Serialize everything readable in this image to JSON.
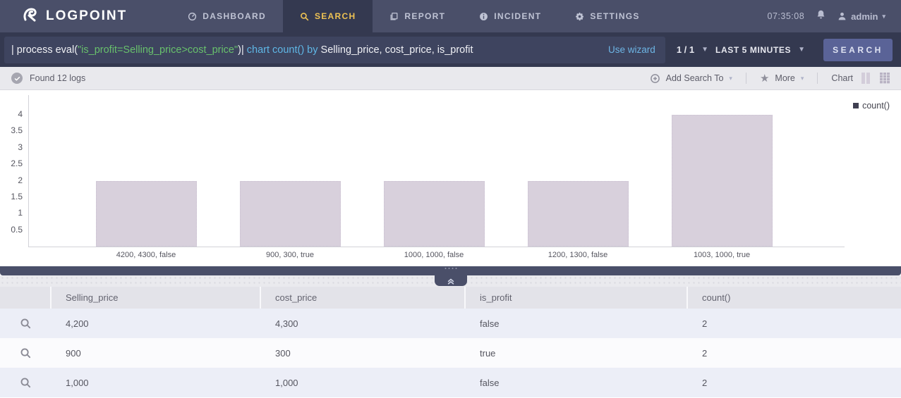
{
  "nav": {
    "logo": "LOGPOINT",
    "items": [
      {
        "label": "DASHBOARD",
        "icon": "dashboard-icon",
        "active": false
      },
      {
        "label": "SEARCH",
        "icon": "search-icon",
        "active": true
      },
      {
        "label": "REPORT",
        "icon": "report-icon",
        "active": false
      },
      {
        "label": "INCIDENT",
        "icon": "incident-icon",
        "active": false
      },
      {
        "label": "SETTINGS",
        "icon": "settings-icon",
        "active": false
      }
    ],
    "clock": "07:35:08",
    "user": "admin"
  },
  "query_bar": {
    "query_segments": [
      {
        "text": "| process eval(",
        "color": "white"
      },
      {
        "text": "\"is_profit=Selling_price>cost_price\"",
        "color": "green"
      },
      {
        "text": ")| ",
        "color": "white"
      },
      {
        "text": "chart count() by ",
        "color": "blue"
      },
      {
        "text": "Selling_price, cost_price, is_profit",
        "color": "white"
      }
    ],
    "use_wizard": "Use wizard",
    "page": "1 / 1",
    "time_range": "LAST 5 MINUTES",
    "search_button": "SEARCH"
  },
  "status_bar": {
    "found": "Found 12 logs",
    "add_search_to": "Add Search To",
    "more": "More",
    "chart_label": "Chart"
  },
  "chart_data": {
    "type": "bar",
    "title": "",
    "categories": [
      "4200, 4300, false",
      "900, 300, true",
      "1000, 1000, false",
      "1200, 1300, false",
      "1003, 1000, true"
    ],
    "values": [
      2,
      2,
      2,
      2,
      4
    ],
    "series_name": "count()",
    "xlabel": "",
    "ylabel": "",
    "y_ticks": [
      0.5,
      1,
      1.5,
      2,
      2.5,
      3,
      3.5,
      4
    ],
    "ylim": [
      0,
      4.4
    ],
    "grid": false,
    "legend_position": "top-right",
    "bar_color": "#d8d0dc",
    "legend_color": "#3f3f51"
  },
  "table": {
    "columns": [
      "Selling_price",
      "cost_price",
      "is_profit",
      "count()"
    ],
    "rows": [
      [
        "4,200",
        "4,300",
        "false",
        "2"
      ],
      [
        "900",
        "300",
        "true",
        "2"
      ],
      [
        "1,000",
        "1,000",
        "false",
        "2"
      ]
    ]
  },
  "colors": {
    "nav_bg": "#4a4f69",
    "active_tab_bg": "#343950",
    "accent_gold": "#eec253",
    "query_green": "#68c06c",
    "query_blue": "#5fb7e6",
    "search_button_bg": "#5a6397",
    "bar_fill": "#d8d0dc"
  }
}
